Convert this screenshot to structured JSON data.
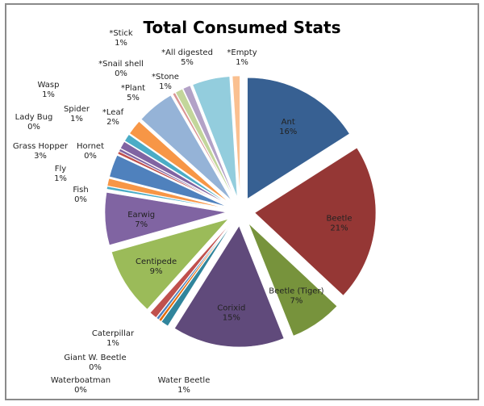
{
  "chart_data": {
    "type": "pie",
    "title": "Total Consumed Stats",
    "exploded": true,
    "start": "12 o'clock, clockwise",
    "slices": [
      {
        "label": "Ant",
        "value": 16,
        "pct": "16%",
        "color": "#376092"
      },
      {
        "label": "Beetle",
        "value": 21,
        "pct": "21%",
        "color": "#953735"
      },
      {
        "label": "Beetle (Tiger)",
        "value": 7,
        "pct": "7%",
        "color": "#77933C"
      },
      {
        "label": "Corixid",
        "value": 15,
        "pct": "15%",
        "color": "#604A7B"
      },
      {
        "label": "Water Beetle",
        "value": 1,
        "pct": "1%",
        "color": "#31859C"
      },
      {
        "label": "Waterboatman",
        "value": 0,
        "pct": "0%",
        "color": "#E46C0A"
      },
      {
        "label": "Giant W. Beetle",
        "value": 0,
        "pct": "0%",
        "color": "#4F81BD"
      },
      {
        "label": "Caterpillar",
        "value": 1,
        "pct": "1%",
        "color": "#C0504D"
      },
      {
        "label": "Centipede",
        "value": 9,
        "pct": "9%",
        "color": "#9BBB59"
      },
      {
        "label": "Earwig",
        "value": 7,
        "pct": "7%",
        "color": "#8064A2"
      },
      {
        "label": "Fish",
        "value": 0,
        "pct": "0%",
        "color": "#4BACC6"
      },
      {
        "label": "Fly",
        "value": 1,
        "pct": "1%",
        "color": "#F79646"
      },
      {
        "label": "Grass Hopper",
        "value": 3,
        "pct": "3%",
        "color": "#4F81BD"
      },
      {
        "label": "Hornet",
        "value": 0,
        "pct": "0%",
        "color": "#C0504D"
      },
      {
        "label": "Lady Bug",
        "value": 0,
        "pct": "0%",
        "color": "#8064A2"
      },
      {
        "label": "Spider",
        "value": 1,
        "pct": "1%",
        "color": "#8064A2"
      },
      {
        "label": "Wasp",
        "value": 1,
        "pct": "1%",
        "color": "#4BACC6"
      },
      {
        "label": "*Leaf",
        "value": 2,
        "pct": "2%",
        "color": "#F79646"
      },
      {
        "label": "*Plant",
        "value": 5,
        "pct": "5%",
        "color": "#95B3D7"
      },
      {
        "label": "*Snail shell",
        "value": 0,
        "pct": "0%",
        "color": "#D99694"
      },
      {
        "label": "*Stick",
        "value": 1,
        "pct": "1%",
        "color": "#C3D69B"
      },
      {
        "label": "*Stone",
        "value": 1,
        "pct": "1%",
        "color": "#B3A2C7"
      },
      {
        "label": "*All digested",
        "value": 5,
        "pct": "5%",
        "color": "#93CDDD"
      },
      {
        "label": "*Empty",
        "value": 1,
        "pct": "1%",
        "color": "#FAC090"
      }
    ]
  }
}
